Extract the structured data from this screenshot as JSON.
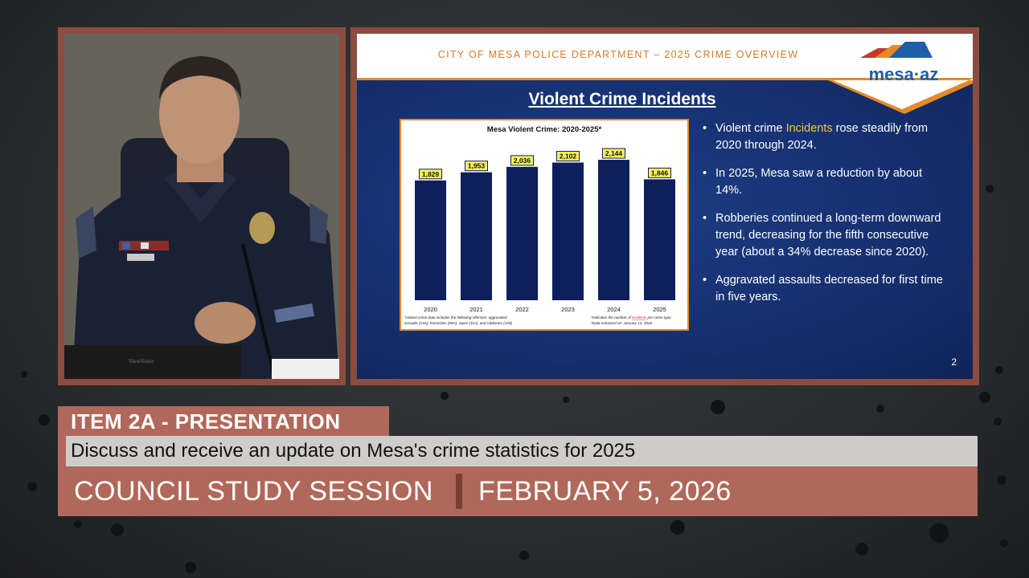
{
  "video": {
    "nameplate": "ViewSonic"
  },
  "slide": {
    "header": "CITY OF MESA POLICE DEPARTMENT – 2025 CRIME OVERVIEW",
    "logo_text": "mesa·az",
    "title": "Violent Crime Incidents",
    "bullets": [
      {
        "pre": "Violent crime ",
        "highlight": "Incidents",
        "post": " rose steadily from 2020 through 2024."
      },
      {
        "pre": "In 2025, Mesa saw a reduction by about 14%.",
        "highlight": "",
        "post": ""
      },
      {
        "pre": "Robberies continued a long-term downward trend, decreasing for the fifth consecutive year (about a 34% decrease since 2020).",
        "highlight": "",
        "post": ""
      },
      {
        "pre": "Aggravated assaults decreased for first time in five years.",
        "highlight": "",
        "post": ""
      }
    ],
    "page_number": "2",
    "colors": {
      "accent": "#e48a2a",
      "bar": "#0d1f5c",
      "highlight": "#f4c542"
    }
  },
  "chart_data": {
    "type": "bar",
    "title": "Mesa Violent Crime: 2020-2025*",
    "categories": [
      "2020",
      "2021",
      "2022",
      "2023",
      "2024",
      "2025"
    ],
    "values": [
      1829,
      1953,
      2036,
      2102,
      2144,
      1846
    ],
    "value_labels": [
      "1,829",
      "1,953",
      "2,036",
      "2,102",
      "2,144",
      "1,846"
    ],
    "ylim": [
      0,
      2500
    ],
    "grid": false,
    "footnote_left_1": "*Violent crime data includes the following offenses: aggravated",
    "footnote_left_2": "assaults (13A), homicides (09A), rapes (11A), and robberies (120)",
    "footnote_right_1_pre": "*Indicates the number of ",
    "footnote_right_1_em": "incidents",
    "footnote_right_1_post": " per crime type",
    "footnote_right_2": "*Data extracted on: January 13, 2026"
  },
  "lower_third": {
    "item_label": "ITEM 2A - PRESENTATION",
    "description": "Discuss and receive an update on Mesa's crime statistics for 2025",
    "session": "COUNCIL STUDY SESSION",
    "date": "FEBRUARY 5, 2026"
  }
}
